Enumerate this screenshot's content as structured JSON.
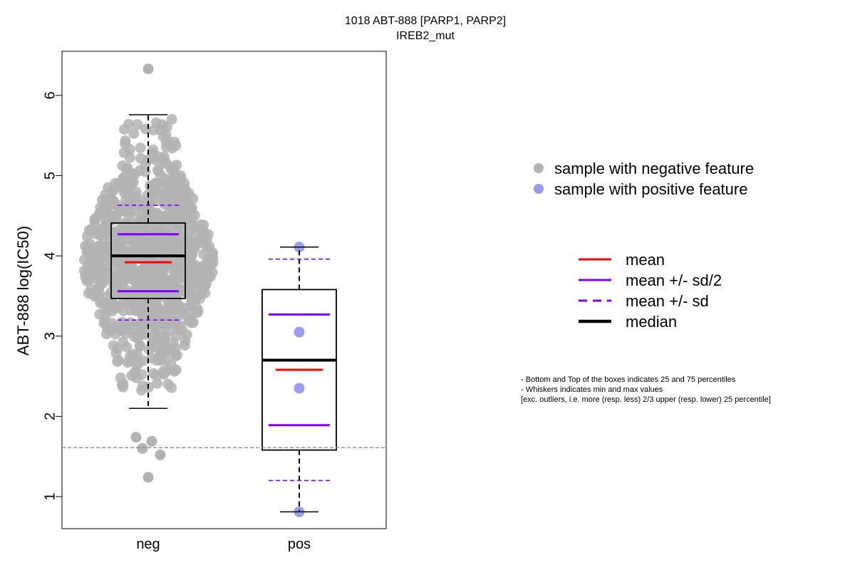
{
  "chart_data": {
    "type": "box",
    "title": "1018 ABT-888 [PARP1, PARP2]",
    "subtitle": "IREB2_mut",
    "xlabel": "",
    "ylabel": "ABT-888 log(IC50)",
    "ylim": [
      0.6,
      6.55
    ],
    "yticks": [
      1,
      2,
      3,
      4,
      5,
      6
    ],
    "categories": [
      "neg",
      "pos"
    ],
    "reference_line_y": 1.61,
    "groups": [
      {
        "name": "neg",
        "whisker_min": 2.1,
        "q1": 3.47,
        "median": 4.0,
        "q3": 4.41,
        "whisker_max": 5.76,
        "mean": 3.92,
        "mean_minus_half_sd": 3.56,
        "mean_plus_half_sd": 4.27,
        "mean_minus_sd": 3.2,
        "mean_plus_sd": 4.63,
        "outliers": [
          6.33,
          1.74,
          1.69,
          1.6,
          1.52,
          1.24
        ],
        "point_color": "#b3b3b3",
        "point_count_approx": 900
      },
      {
        "name": "pos",
        "whisker_min": 0.81,
        "q1": 1.58,
        "median": 2.7,
        "q3": 3.58,
        "whisker_max": 4.11,
        "mean": 2.58,
        "mean_minus_half_sd": 1.89,
        "mean_plus_half_sd": 3.27,
        "mean_minus_sd": 1.2,
        "mean_plus_sd": 3.96,
        "points": [
          4.11,
          3.05,
          2.35,
          0.81
        ],
        "point_color": "#9999ee"
      }
    ],
    "legend_points": [
      {
        "label": "sample with negative feature",
        "color": "#b3b3b3"
      },
      {
        "label": "sample with positive feature",
        "color": "#9999ee"
      }
    ],
    "legend_lines": [
      {
        "label": "mean",
        "color": "#ff0000",
        "style": "solid"
      },
      {
        "label": "mean +/- sd/2",
        "color": "#8000ff",
        "style": "solid"
      },
      {
        "label": "mean +/- sd",
        "color": "#8000ff",
        "style": "dashed"
      },
      {
        "label": "median",
        "color": "#000000",
        "style": "solid-thick"
      }
    ],
    "notes": [
      "- Bottom and Top of the boxes indicates 25 and 75 percentiles",
      "- Whiskers indicates min and max values",
      "[exc. outliers, i.e. more (resp. less) 2/3 upper (resp. lower) 25 percentile]"
    ]
  }
}
